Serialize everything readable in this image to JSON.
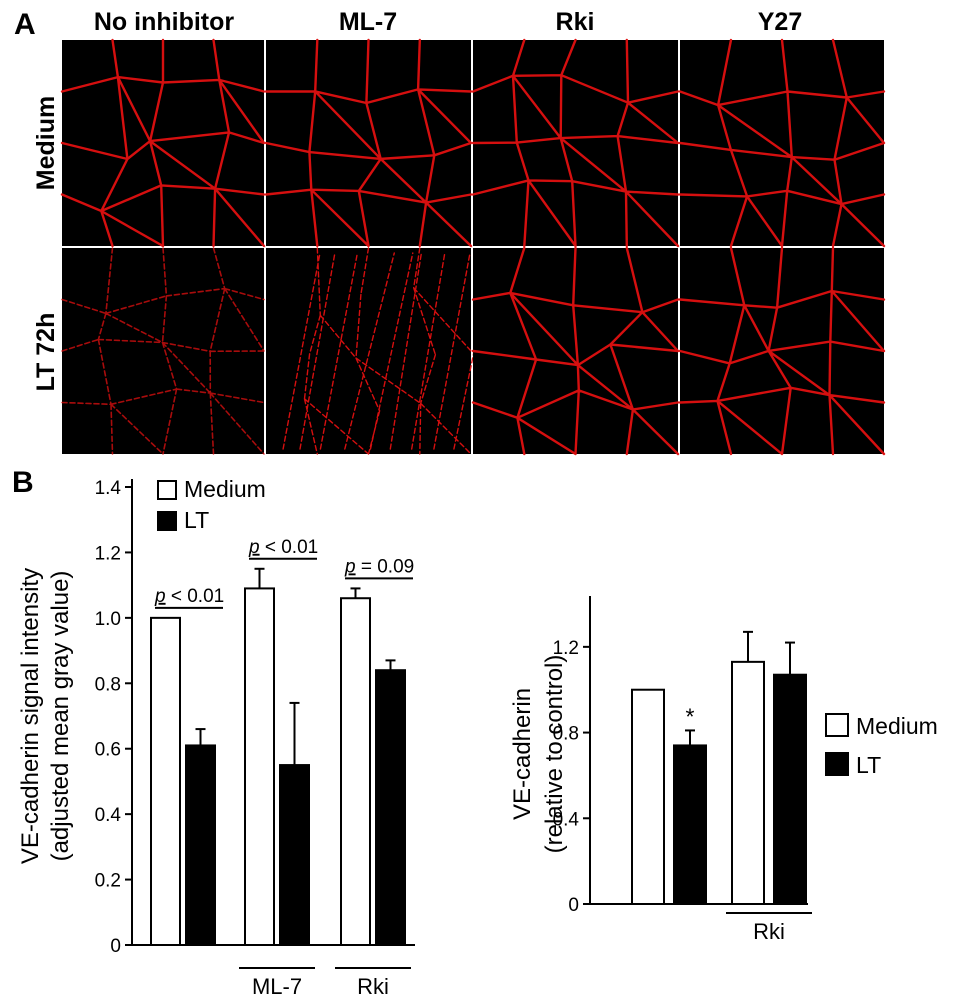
{
  "panel_a": {
    "letter": "A",
    "columns": [
      "No inhibitor",
      "ML-7",
      "Rki",
      "Y27"
    ],
    "rows": [
      "Medium",
      "LT 72h"
    ],
    "image_description_color": "#e01010"
  },
  "panel_b": {
    "letter": "B"
  },
  "chart_data": [
    {
      "type": "bar",
      "title": "",
      "ylabel_line1": "VE-cadherin signal intensity",
      "ylabel_line2": "(adjusted mean gray value)",
      "ylim": [
        0,
        1.4
      ],
      "yticks": [
        "0",
        "0.2",
        "0.4",
        "0.6",
        "0.8",
        "1.0",
        "1.2",
        "1.4"
      ],
      "groups": [
        {
          "label": "",
          "medium": 1.0,
          "medium_err": 0.0,
          "lt": 0.61,
          "lt_err": 0.05
        },
        {
          "label": "ML-7",
          "medium": 1.09,
          "medium_err": 0.06,
          "lt": 0.55,
          "lt_err": 0.19
        },
        {
          "label": "Rki",
          "medium": 1.06,
          "medium_err": 0.03,
          "lt": 0.84,
          "lt_err": 0.03
        }
      ],
      "pvalues": [
        {
          "p": "p",
          "rest": " < 0.01"
        },
        {
          "p": "p",
          "rest": " < 0.01"
        },
        {
          "p": "p",
          "rest": " = 0.09"
        }
      ],
      "legend": {
        "placement": "top-left",
        "entries": [
          "Medium",
          "LT"
        ]
      },
      "colors": {
        "medium": "#ffffff",
        "lt": "#000000"
      }
    },
    {
      "type": "bar",
      "title": "",
      "ylabel_line1": "VE-cadherin",
      "ylabel_line2": "(relative to control)",
      "ylim": [
        0,
        1.4
      ],
      "yticks": [
        "0",
        "0.4",
        "0.8",
        "1.2"
      ],
      "groups": [
        {
          "label": "",
          "medium": 1.0,
          "medium_err": 0.0,
          "lt": 0.74,
          "lt_err": 0.07,
          "lt_mark": "*"
        },
        {
          "label": "Rki",
          "medium": 1.13,
          "medium_err": 0.14,
          "lt": 1.07,
          "lt_err": 0.15
        }
      ],
      "legend": {
        "placement": "right",
        "entries": [
          "Medium",
          "LT"
        ]
      },
      "colors": {
        "medium": "#ffffff",
        "lt": "#000000"
      }
    }
  ]
}
